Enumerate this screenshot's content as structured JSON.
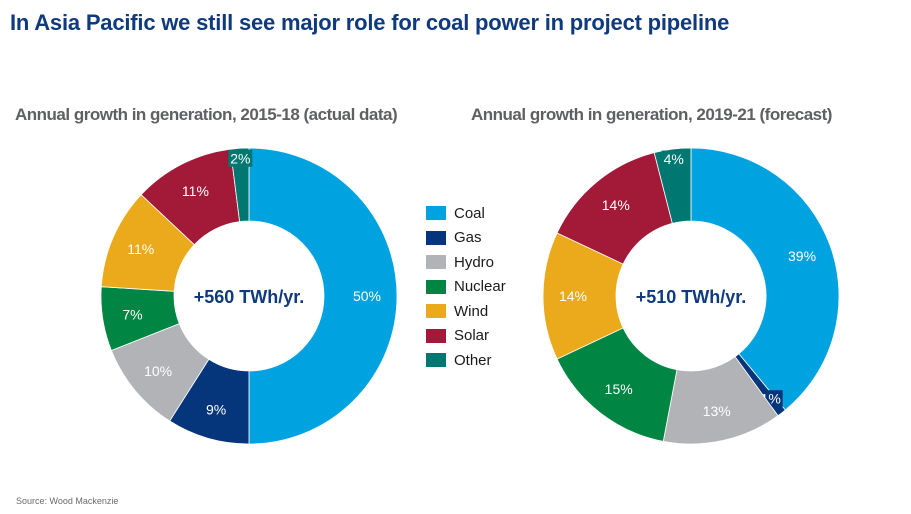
{
  "title": "In Asia Pacific we still see major role for coal power in project pipeline",
  "source": "Source: Wood Mackenzie",
  "legend": [
    {
      "label": "Coal",
      "color": "#00a3e0"
    },
    {
      "label": "Gas",
      "color": "#05357a"
    },
    {
      "label": "Hydro",
      "color": "#b1b3b6"
    },
    {
      "label": "Nuclear",
      "color": "#008542"
    },
    {
      "label": "Wind",
      "color": "#eaaa1b"
    },
    {
      "label": "Solar",
      "color": "#a21a38"
    },
    {
      "label": "Other",
      "color": "#007770"
    }
  ],
  "chart_data": [
    {
      "type": "pie",
      "title": "Annual growth in generation, 2015-18 (actual data)",
      "center_label": "+560 TWh/yr.",
      "categories": [
        "Coal",
        "Gas",
        "Hydro",
        "Nuclear",
        "Wind",
        "Solar",
        "Other"
      ],
      "values": [
        50,
        9,
        10,
        7,
        11,
        11,
        2
      ],
      "labels": [
        "50%",
        "9%",
        "10%",
        "7%",
        "11%",
        "11%",
        "2%"
      ]
    },
    {
      "type": "pie",
      "title": "Annual growth in generation, 2019-21 (forecast)",
      "center_label": "+510 TWh/yr.",
      "categories": [
        "Coal",
        "Gas",
        "Hydro",
        "Nuclear",
        "Wind",
        "Solar",
        "Other"
      ],
      "values": [
        39,
        1,
        13,
        15,
        14,
        14,
        4
      ],
      "labels": [
        "39%",
        "1%",
        "13%",
        "15%",
        "14%",
        "14%",
        "4%"
      ]
    }
  ]
}
